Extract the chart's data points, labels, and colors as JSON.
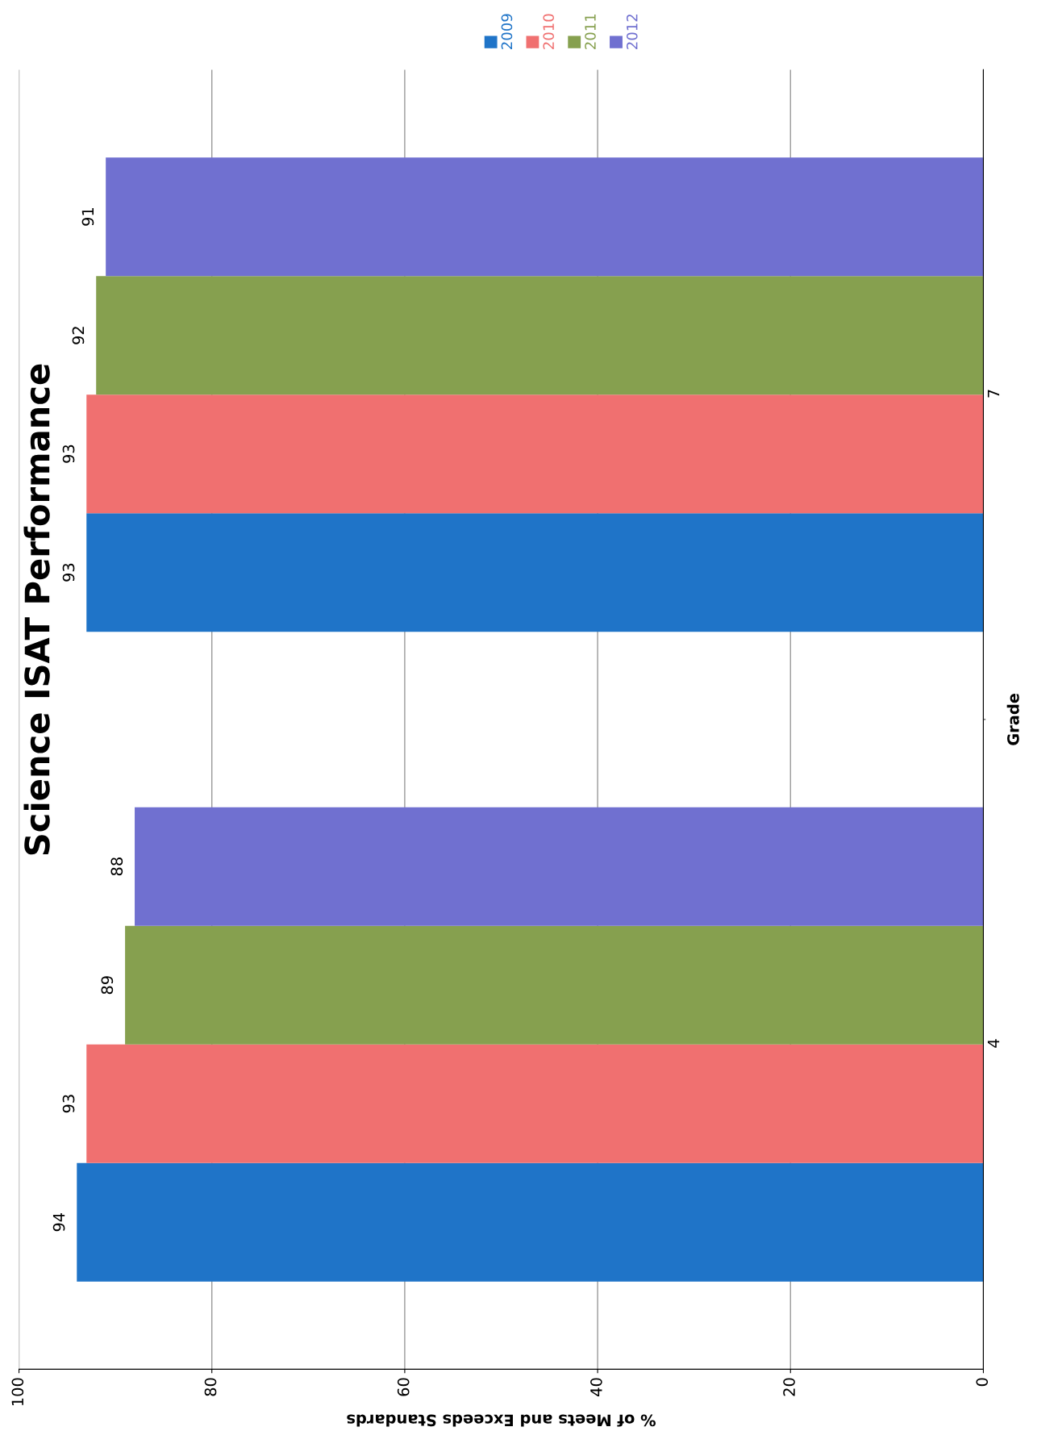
{
  "chart_data": {
    "type": "bar",
    "orientation": "horizontal",
    "title": "Science ISAT Performance",
    "xlabel": "% of Meets and Exceeds Standards",
    "ylabel": "Grade",
    "categories": [
      "7",
      "4"
    ],
    "series": [
      {
        "name": "2009",
        "color": "#1f74c8",
        "values": [
          93,
          94
        ]
      },
      {
        "name": "2010",
        "color": "#f07070",
        "values": [
          93,
          93
        ]
      },
      {
        "name": "2011",
        "color": "#86a04f",
        "values": [
          92,
          89
        ]
      },
      {
        "name": "2012",
        "color": "#7070d0",
        "values": [
          91,
          88
        ]
      }
    ],
    "xlim": [
      100,
      0
    ],
    "xticks": [
      0,
      20,
      40,
      60,
      80,
      100
    ],
    "grid": "x",
    "legend": "top right",
    "data_labels": true
  }
}
